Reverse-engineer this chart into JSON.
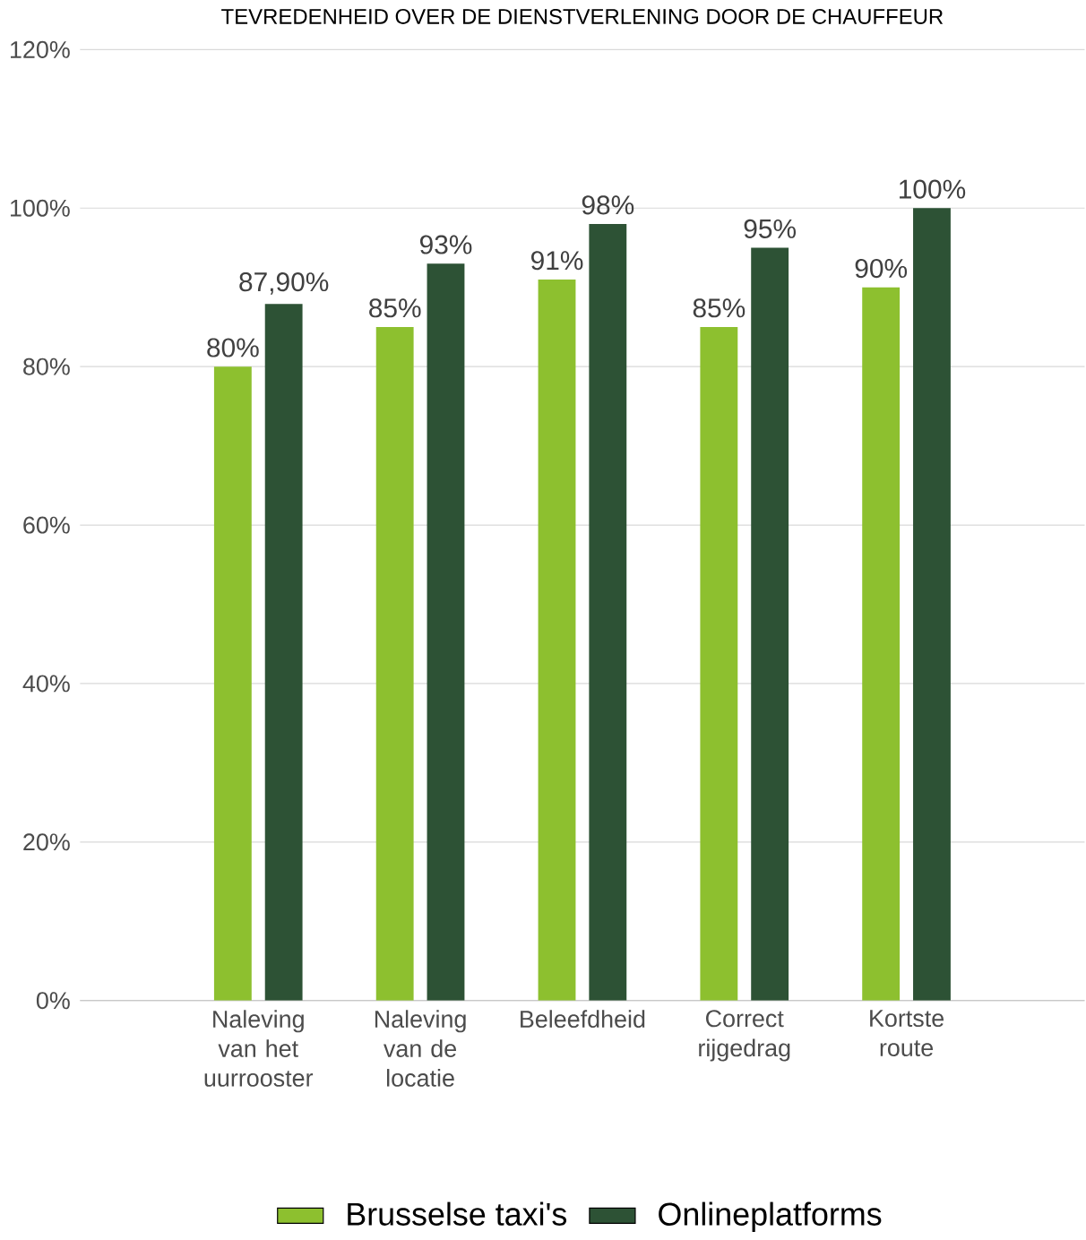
{
  "chart_data": {
    "type": "bar",
    "title": "TEVREDENHEID OVER DE DIENSTVERLENING DOOR DE CHAUFFEUR",
    "categories": [
      "Naleving van het uurrooster",
      "Naleving van de locatie",
      "Beleefdheid",
      "Correct rijgedrag",
      "Kortste route"
    ],
    "series": [
      {
        "name": "Brusselse taxi's",
        "color": "#8dc02f",
        "values": [
          80,
          85,
          91,
          85,
          90
        ],
        "value_labels": [
          "80%",
          "85%",
          "91%",
          "85%",
          "90%"
        ]
      },
      {
        "name": "Onlineplatforms",
        "color": "#2d5235",
        "values": [
          87.9,
          93,
          98,
          95,
          100
        ],
        "value_labels": [
          "87,90%",
          "93%",
          "98%",
          "95%",
          "100%"
        ]
      }
    ],
    "ylim": [
      0,
      120
    ],
    "yticks": [
      {
        "value": 0,
        "label": "0%"
      },
      {
        "value": 20,
        "label": "20%"
      },
      {
        "value": 40,
        "label": "40%"
      },
      {
        "value": 60,
        "label": "60%"
      },
      {
        "value": 80,
        "label": "80%"
      },
      {
        "value": 100,
        "label": "100%"
      },
      {
        "value": 120,
        "label": "120%"
      }
    ],
    "grid": "y",
    "legend": "bottom"
  }
}
